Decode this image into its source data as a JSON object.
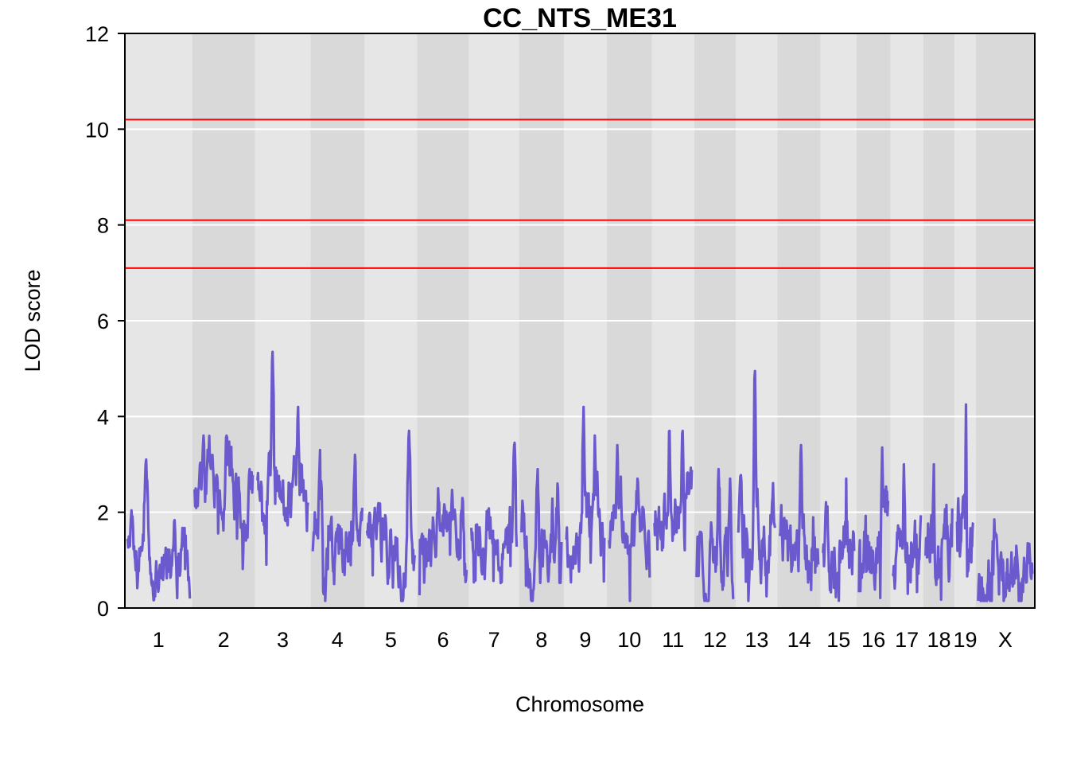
{
  "chart_data": {
    "type": "line",
    "title": "CC_NTS_ME31",
    "xlabel": "Chromosome",
    "ylabel": "LOD score",
    "ylim": [
      0,
      12
    ],
    "yticks": [
      0,
      2,
      4,
      6,
      8,
      10,
      12
    ],
    "grid": true,
    "colors": {
      "line": "#6a5acd",
      "threshold": "#ff0000",
      "band_light": "#e6e6e6",
      "band_dark": "#d9d9d9",
      "gridline": "#ffffff"
    },
    "thresholds": [
      10.2,
      8.1,
      7.1
    ],
    "chromosomes": [
      {
        "label": "1",
        "length": 195,
        "bumps": [
          [
            0.3,
            3.1
          ],
          [
            0.75,
            1.8
          ]
        ],
        "base": 1.0
      },
      {
        "label": "2",
        "length": 182,
        "bumps": [
          [
            0.15,
            3.6
          ],
          [
            0.55,
            3.6
          ],
          [
            0.95,
            2.9
          ]
        ],
        "base": 2.2
      },
      {
        "label": "3",
        "length": 160,
        "bumps": [
          [
            0.3,
            5.35
          ],
          [
            0.8,
            4.2
          ]
        ],
        "base": 2.3
      },
      {
        "label": "4",
        "length": 157,
        "bumps": [
          [
            0.15,
            3.3
          ],
          [
            0.85,
            3.2
          ]
        ],
        "base": 1.4
      },
      {
        "label": "5",
        "length": 152,
        "bumps": [
          [
            0.88,
            3.7
          ]
        ],
        "base": 1.4
      },
      {
        "label": "6",
        "length": 150,
        "bumps": [
          [
            0.4,
            2.5
          ]
        ],
        "base": 1.3
      },
      {
        "label": "7",
        "length": 145,
        "bumps": [
          [
            0.95,
            3.45
          ]
        ],
        "base": 1.6
      },
      {
        "label": "8",
        "length": 130,
        "bumps": [
          [
            0.4,
            2.9
          ],
          [
            0.9,
            2.6
          ]
        ],
        "base": 1.3
      },
      {
        "label": "9",
        "length": 124,
        "bumps": [
          [
            0.45,
            4.2
          ],
          [
            0.75,
            3.6
          ]
        ],
        "base": 1.7
      },
      {
        "label": "10",
        "length": 131,
        "bumps": [
          [
            0.2,
            3.4
          ],
          [
            0.7,
            2.7
          ]
        ],
        "base": 1.8
      },
      {
        "label": "11",
        "length": 122,
        "bumps": [
          [
            0.4,
            3.7
          ],
          [
            0.75,
            3.7
          ]
        ],
        "base": 2.1
      },
      {
        "label": "12",
        "length": 121,
        "bumps": [
          [
            0.6,
            2.9
          ],
          [
            0.9,
            2.7
          ]
        ],
        "base": 0.9
      },
      {
        "label": "13",
        "length": 120,
        "bumps": [
          [
            0.45,
            4.95
          ]
        ],
        "base": 1.6
      },
      {
        "label": "14",
        "length": 125,
        "bumps": [
          [
            0.55,
            3.4
          ]
        ],
        "base": 1.2
      },
      {
        "label": "15",
        "length": 104,
        "bumps": [
          [
            0.75,
            2.7
          ]
        ],
        "base": 1.2
      },
      {
        "label": "16",
        "length": 98,
        "bumps": [
          [
            0.8,
            3.35
          ]
        ],
        "base": 1.6
      },
      {
        "label": "17",
        "length": 95,
        "bumps": [
          [
            0.4,
            3.0
          ]
        ],
        "base": 1.0
      },
      {
        "label": "18",
        "length": 91,
        "bumps": [
          [
            0.3,
            3.0
          ]
        ],
        "base": 1.3
      },
      {
        "label": "19",
        "length": 61,
        "bumps": [
          [
            0.55,
            4.25
          ]
        ],
        "base": 1.5
      },
      {
        "label": "X",
        "length": 171,
        "bumps": [
          [
            0.3,
            1.85
          ],
          [
            0.7,
            1.3
          ]
        ],
        "base": 0.6
      }
    ]
  }
}
